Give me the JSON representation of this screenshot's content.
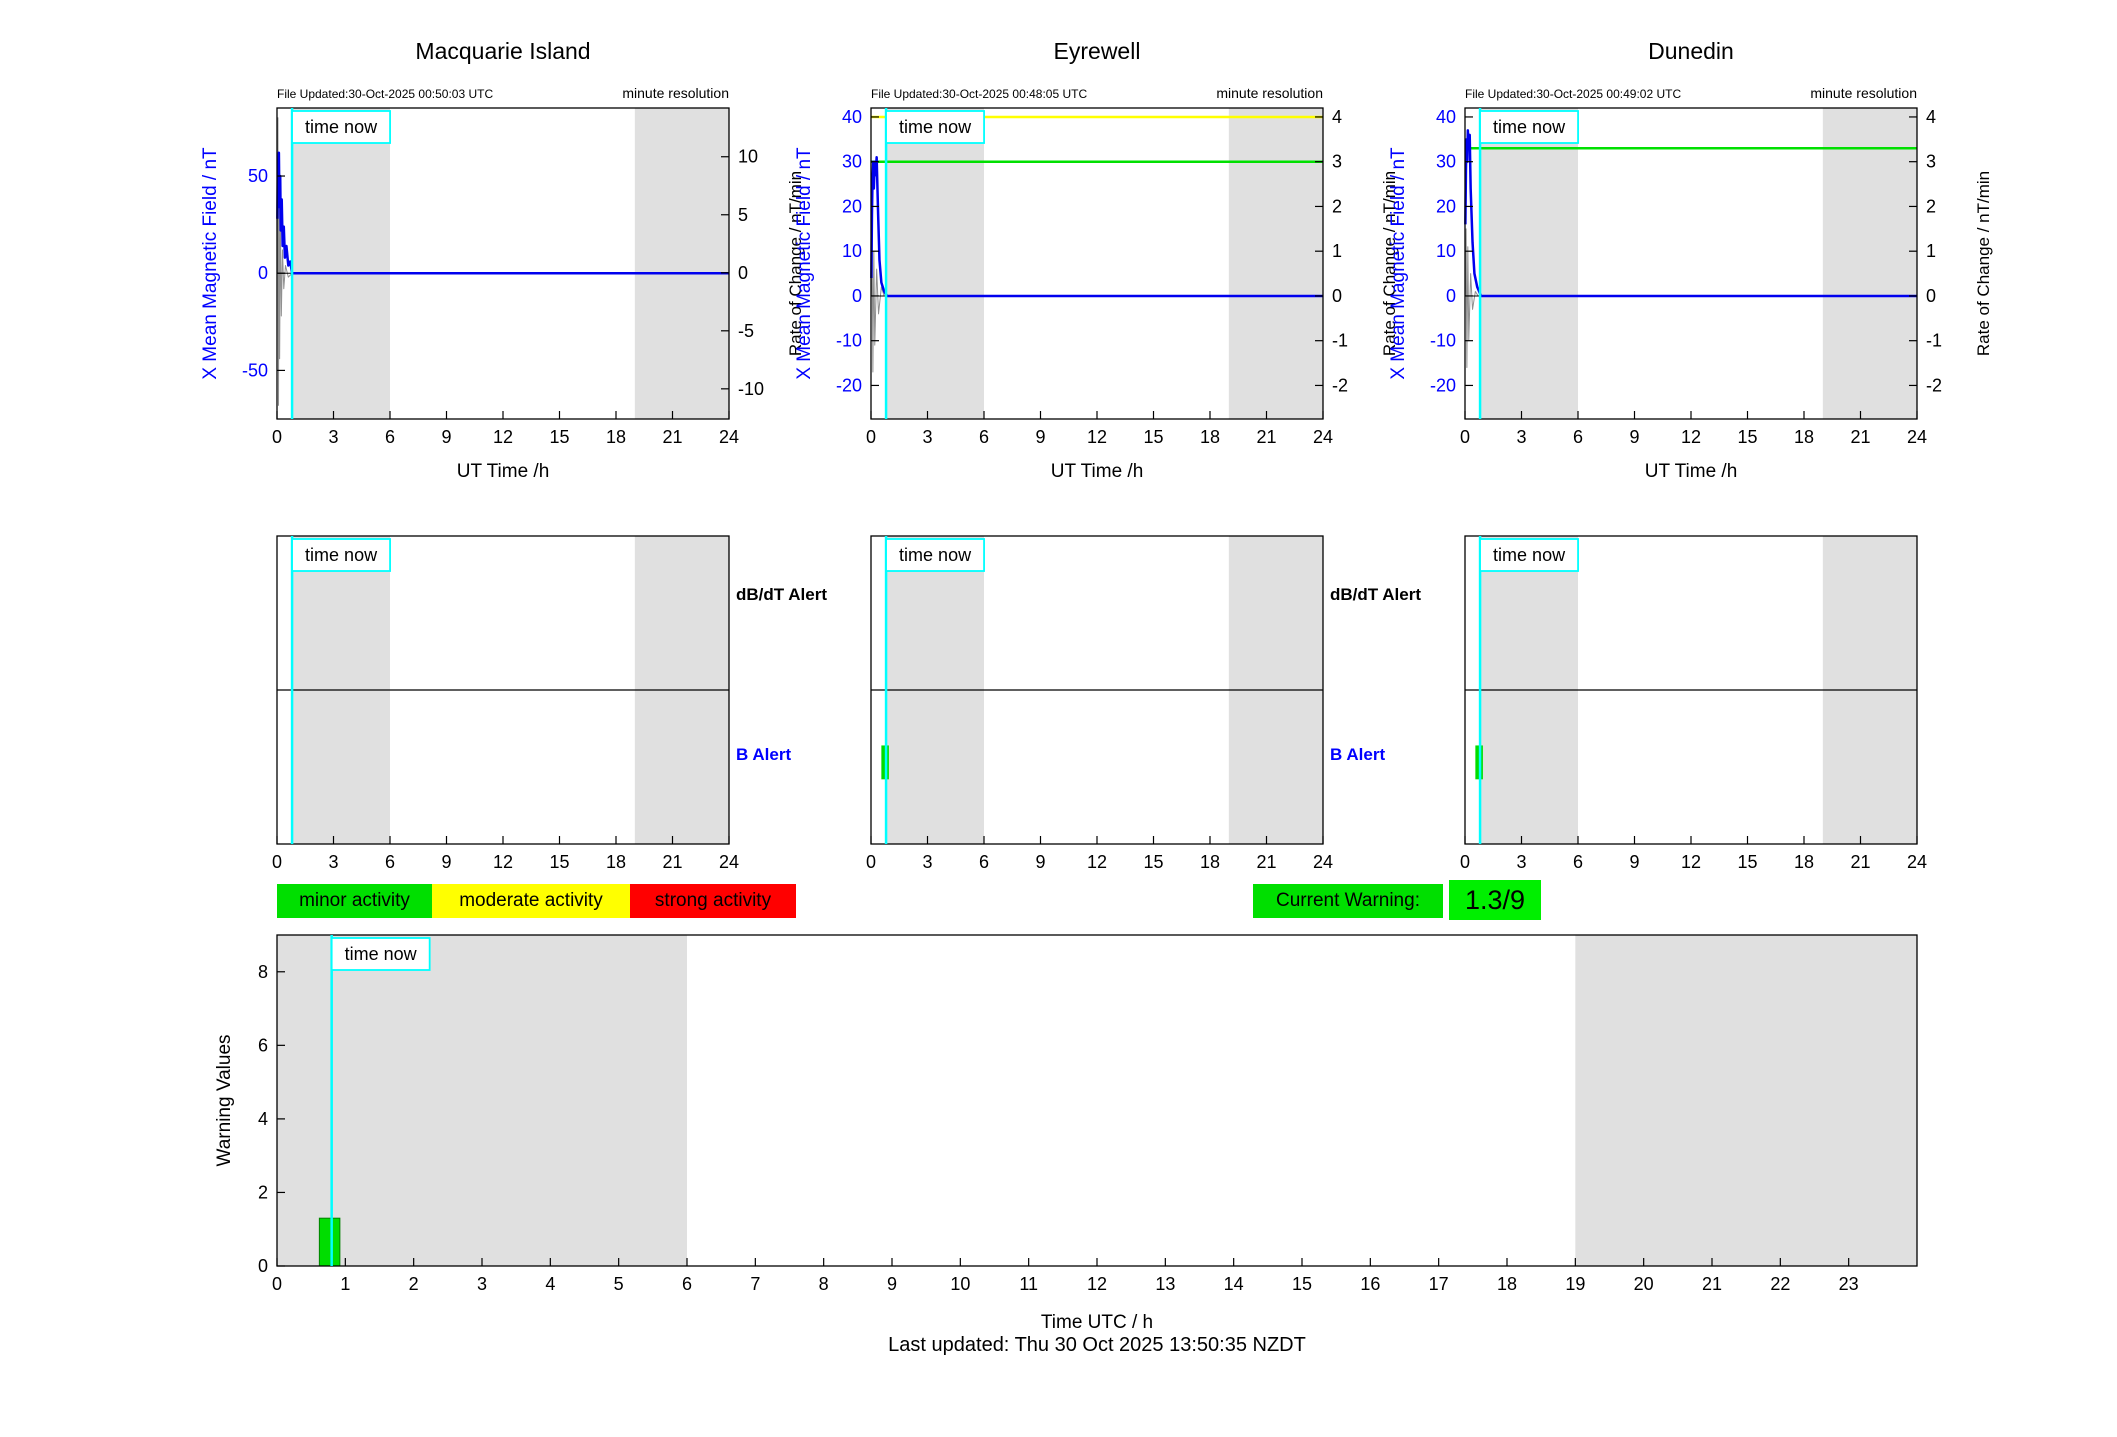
{
  "page": {
    "last_updated": "Last updated: Thu 30 Oct 2025 13:50:35 NZDT"
  },
  "colors": {
    "band": "#e0e0e0",
    "field": "#0000ee",
    "rate_gray": "#909090",
    "baseline": "#000000",
    "cyan": "#00ffff",
    "axis_blue": "#0000ff",
    "green": "#00dd00",
    "yellow": "#ffff00",
    "red": "#ff0000"
  },
  "alerts": {
    "dbdt_label": "dB/dT Alert",
    "b_label": "B Alert"
  },
  "legend": {
    "items": [
      {
        "label": "minor activity",
        "color": "#00df00"
      },
      {
        "label": "moderate activity",
        "color": "#ffff00"
      },
      {
        "label": "strong activity",
        "color": "#ff0000"
      }
    ],
    "current_warning": {
      "label": "Current Warning:",
      "label_bg": "#00df00",
      "value": "1.3/9",
      "value_bg": "#00ef00"
    }
  },
  "chart_data": [
    {
      "kind": "field",
      "station": "Macquarie Island",
      "file_updated": "File Updated:30-Oct-2025 00:50:03 UTC",
      "resolution_note": "minute resolution",
      "xlabel": "UT Time /h",
      "ylabel_left": "X Mean Magnetic Field / nT",
      "ylabel_right": "Rate of Change / nT/min",
      "xlim": [
        0,
        24
      ],
      "xticks": [
        0,
        3,
        6,
        9,
        12,
        15,
        18,
        21,
        24
      ],
      "ylim_left": [
        -75,
        85
      ],
      "yticks_left": [
        50,
        0,
        -50
      ],
      "ylim_right": [
        -12.6,
        14.2
      ],
      "yticks_right": [
        10,
        5,
        0,
        -5,
        -10
      ],
      "left_tick_color": "#0000ff",
      "bands": [
        [
          0.8,
          6
        ],
        [
          19,
          24
        ]
      ],
      "time_now": {
        "x": 0.8,
        "label": "time now"
      },
      "thresholds": [],
      "series": [
        {
          "name": "rate-of-change",
          "color": "#909090",
          "width": 1,
          "points": [
            [
              0.02,
              0
            ],
            [
              0.05,
              80
            ],
            [
              0.08,
              -68
            ],
            [
              0.11,
              52
            ],
            [
              0.14,
              -44
            ],
            [
              0.18,
              28
            ],
            [
              0.23,
              -22
            ],
            [
              0.29,
              12
            ],
            [
              0.36,
              -8
            ],
            [
              0.45,
              4
            ],
            [
              0.6,
              -2
            ],
            [
              0.8,
              0
            ]
          ]
        },
        {
          "name": "zero-baseline",
          "color": "#000000",
          "width": 1,
          "points": [
            [
              0.02,
              0
            ],
            [
              24,
              0
            ]
          ]
        },
        {
          "name": "x-field",
          "color": "#0000ee",
          "width": 2.5,
          "points": [
            [
              0.02,
              28
            ],
            [
              0.05,
              58
            ],
            [
              0.07,
              38
            ],
            [
              0.1,
              62
            ],
            [
              0.13,
              34
            ],
            [
              0.17,
              50
            ],
            [
              0.2,
              22
            ],
            [
              0.25,
              38
            ],
            [
              0.3,
              14
            ],
            [
              0.36,
              24
            ],
            [
              0.42,
              8
            ],
            [
              0.5,
              14
            ],
            [
              0.6,
              4
            ],
            [
              0.7,
              6
            ],
            [
              0.8,
              0
            ],
            [
              24,
              0
            ]
          ]
        }
      ]
    },
    {
      "kind": "field",
      "station": "Eyrewell",
      "file_updated": "File Updated:30-Oct-2025 00:48:05 UTC",
      "resolution_note": "minute resolution",
      "xlabel": "UT Time /h",
      "ylabel_left": "X Mean Magnetic Field / nT",
      "ylabel_right": "Rate of Change / nT/min",
      "xlim": [
        0,
        24
      ],
      "xticks": [
        0,
        3,
        6,
        9,
        12,
        15,
        18,
        21,
        24
      ],
      "ylim_left": [
        -27.5,
        42
      ],
      "yticks_left": [
        40,
        30,
        20,
        10,
        0,
        -10,
        -20
      ],
      "ylim_right": [
        -2.75,
        4.2
      ],
      "yticks_right": [
        4,
        3,
        2,
        1,
        0,
        -1,
        -2
      ],
      "left_tick_color": "#0000ff",
      "bands": [
        [
          0.8,
          6
        ],
        [
          19,
          24
        ]
      ],
      "time_now": {
        "x": 0.8,
        "label": "time now"
      },
      "thresholds": [
        {
          "value": 40,
          "color": "#ffff00"
        },
        {
          "value": 30,
          "color": "#00e000"
        }
      ],
      "series": [
        {
          "name": "rate-of-change",
          "color": "#909090",
          "width": 1,
          "points": [
            [
              0.02,
              0
            ],
            [
              0.06,
              14
            ],
            [
              0.1,
              -17
            ],
            [
              0.15,
              10
            ],
            [
              0.2,
              -11
            ],
            [
              0.3,
              6
            ],
            [
              0.4,
              -4
            ],
            [
              0.55,
              2
            ],
            [
              0.7,
              0
            ]
          ]
        },
        {
          "name": "zero-baseline",
          "color": "#000000",
          "width": 1,
          "points": [
            [
              0.02,
              0
            ],
            [
              24,
              0
            ]
          ]
        },
        {
          "name": "x-field",
          "color": "#0000ee",
          "width": 2.5,
          "points": [
            [
              0.02,
              4
            ],
            [
              0.05,
              18
            ],
            [
              0.08,
              26
            ],
            [
              0.12,
              30
            ],
            [
              0.15,
              24
            ],
            [
              0.2,
              30
            ],
            [
              0.25,
              27
            ],
            [
              0.3,
              31
            ],
            [
              0.38,
              18
            ],
            [
              0.45,
              8
            ],
            [
              0.55,
              3
            ],
            [
              0.7,
              1
            ],
            [
              0.85,
              0
            ],
            [
              24,
              0
            ]
          ]
        }
      ]
    },
    {
      "kind": "field",
      "station": "Dunedin",
      "file_updated": "File Updated:30-Oct-2025 00:49:02 UTC",
      "resolution_note": "minute resolution",
      "xlabel": "UT Time /h",
      "ylabel_left": "X Mean Magnetic Field / nT",
      "ylabel_right": "Rate of Change / nT/min",
      "xlim": [
        0,
        24
      ],
      "xticks": [
        0,
        3,
        6,
        9,
        12,
        15,
        18,
        21,
        24
      ],
      "ylim_left": [
        -27.5,
        42
      ],
      "yticks_left": [
        40,
        30,
        20,
        10,
        0,
        -10,
        -20
      ],
      "ylim_right": [
        -2.75,
        4.2
      ],
      "yticks_right": [
        4,
        3,
        2,
        1,
        0,
        -1,
        -2
      ],
      "left_tick_color": "#0000ff",
      "bands": [
        [
          0.8,
          6
        ],
        [
          19,
          24
        ]
      ],
      "time_now": {
        "x": 0.8,
        "label": "time now"
      },
      "thresholds": [
        {
          "value": 33,
          "color": "#00e000"
        }
      ],
      "series": [
        {
          "name": "rate-of-change",
          "color": "#909090",
          "width": 1,
          "points": [
            [
              0.02,
              0
            ],
            [
              0.06,
              15
            ],
            [
              0.1,
              -16
            ],
            [
              0.15,
              11
            ],
            [
              0.2,
              -10
            ],
            [
              0.3,
              5
            ],
            [
              0.4,
              -3
            ],
            [
              0.55,
              1
            ],
            [
              0.7,
              0
            ]
          ]
        },
        {
          "name": "zero-baseline",
          "color": "#000000",
          "width": 1,
          "points": [
            [
              0.02,
              0
            ],
            [
              24,
              0
            ]
          ]
        },
        {
          "name": "x-field",
          "color": "#0000ee",
          "width": 2.5,
          "points": [
            [
              0.02,
              16
            ],
            [
              0.05,
              28
            ],
            [
              0.08,
              35
            ],
            [
              0.12,
              30
            ],
            [
              0.15,
              37
            ],
            [
              0.2,
              33
            ],
            [
              0.25,
              36
            ],
            [
              0.3,
              24
            ],
            [
              0.4,
              12
            ],
            [
              0.5,
              5
            ],
            [
              0.65,
              2
            ],
            [
              0.85,
              0
            ],
            [
              24,
              0
            ]
          ]
        }
      ]
    },
    {
      "kind": "alert",
      "station": "Macquarie Island",
      "xlim": [
        0,
        24
      ],
      "xticks": [
        0,
        3,
        6,
        9,
        12,
        15,
        18,
        21,
        24
      ],
      "bands": [
        [
          0.8,
          6
        ],
        [
          19,
          24
        ]
      ],
      "time_now": {
        "x": 0.8,
        "label": "time now"
      },
      "bars": []
    },
    {
      "kind": "alert",
      "station": "Eyrewell",
      "xlim": [
        0,
        24
      ],
      "xticks": [
        0,
        3,
        6,
        9,
        12,
        15,
        18,
        21,
        24
      ],
      "bands": [
        [
          0.8,
          6
        ],
        [
          19,
          24
        ]
      ],
      "time_now": {
        "x": 0.8,
        "label": "time now"
      },
      "bars": [
        {
          "x0": 0.55,
          "x1": 0.95
        }
      ]
    },
    {
      "kind": "alert",
      "station": "Dunedin",
      "xlim": [
        0,
        24
      ],
      "xticks": [
        0,
        3,
        6,
        9,
        12,
        15,
        18,
        21,
        24
      ],
      "bands": [
        [
          0.8,
          6
        ],
        [
          19,
          24
        ]
      ],
      "time_now": {
        "x": 0.8,
        "label": "time now"
      },
      "bars": [
        {
          "x0": 0.55,
          "x1": 0.95
        }
      ]
    },
    {
      "kind": "bar",
      "title": "Warning Values",
      "ylabel": "Warning Values",
      "xlabel": "Time UTC / h",
      "xlim": [
        0,
        24
      ],
      "xticks": [
        0,
        1,
        2,
        3,
        4,
        5,
        6,
        7,
        8,
        9,
        10,
        11,
        12,
        13,
        14,
        15,
        16,
        17,
        18,
        19,
        20,
        21,
        22,
        23
      ],
      "ylim": [
        0,
        9
      ],
      "yticks": [
        0,
        2,
        4,
        6,
        8
      ],
      "bands": [
        [
          0,
          6
        ],
        [
          19,
          24
        ]
      ],
      "time_now": {
        "x": 0.8,
        "label": "time now"
      },
      "bars": [
        {
          "x0": 0.62,
          "x1": 0.92,
          "value": 1.3
        }
      ]
    }
  ]
}
